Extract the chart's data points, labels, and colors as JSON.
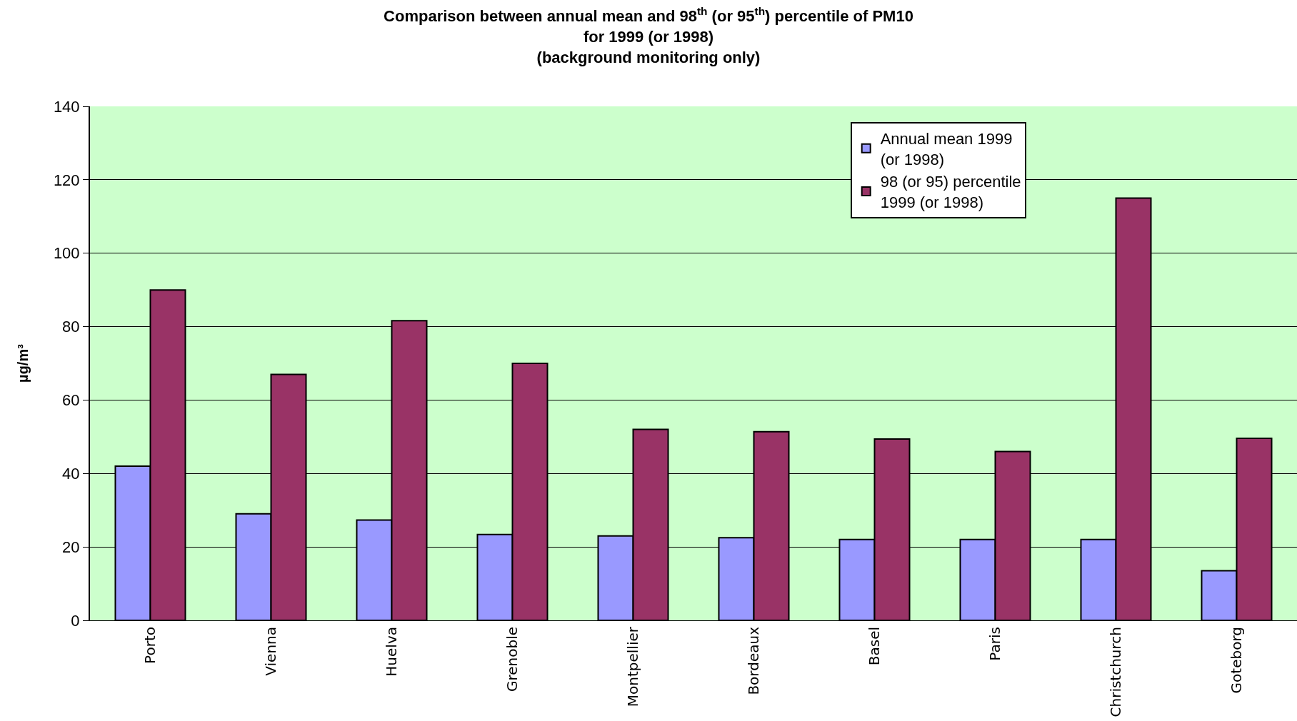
{
  "chart_data": {
    "type": "bar",
    "title": "Comparison between annual mean and 98$^{th}$ (or 95$^{th}$) percentile of PM10\nfor 1999 (or 1998)\n(background monitoring only)",
    "ylabel": "µg/m³",
    "categories": [
      "Porto",
      "Vienna",
      "Huelva",
      "Grenoble",
      "Montpellier",
      "Bordeaux",
      "Basel",
      "Paris",
      "Christchurch",
      "Goteborg"
    ],
    "series": [
      {
        "name": "Annual mean 1999\n(or 1998)",
        "color": "#9999ff",
        "values": [
          42,
          29,
          27.3,
          23.4,
          23,
          22.5,
          22,
          22,
          22,
          13.5
        ]
      },
      {
        "name": "98 (or 95) percentile\n1999 (or 1998)",
        "color": "#993366",
        "values": [
          90,
          67,
          81.6,
          70,
          52,
          51.4,
          49.4,
          46,
          115,
          49.6
        ]
      }
    ],
    "ylim": [
      0,
      140
    ],
    "yticks": [
      0,
      20,
      40,
      60,
      80,
      100,
      120,
      140
    ],
    "grid": "y",
    "legend": "top right"
  }
}
